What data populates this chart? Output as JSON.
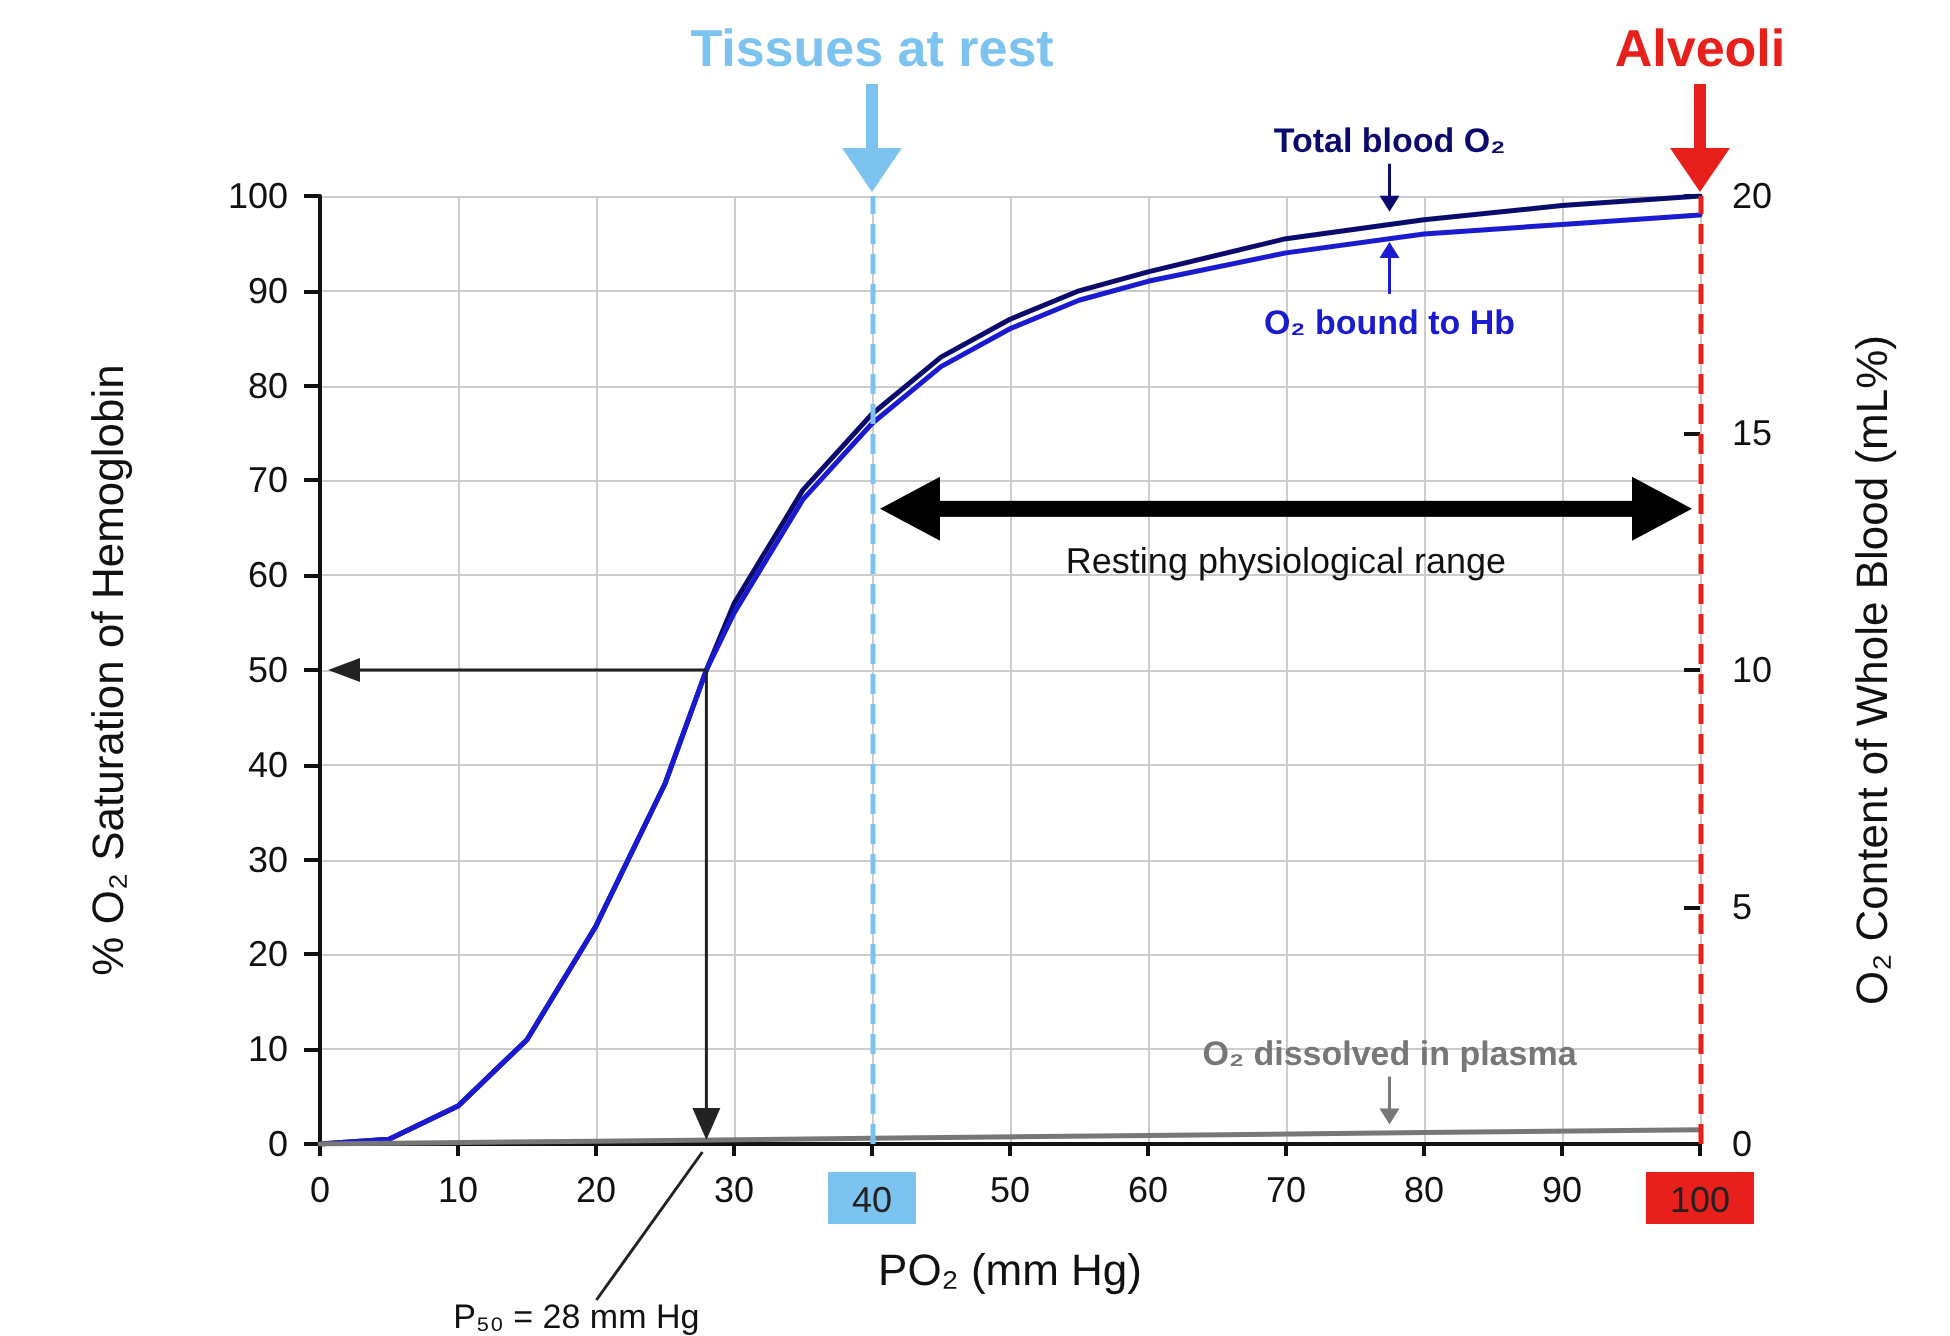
{
  "chart_data": {
    "type": "line",
    "xlabel": "PO₂ (mm Hg)",
    "ylabel": "% O₂ Saturation of Hemoglobin",
    "y2label": "O₂ Content of Whole Blood (mL%)",
    "x": [
      0,
      5,
      10,
      15,
      20,
      25,
      28,
      30,
      35,
      40,
      45,
      50,
      55,
      60,
      70,
      80,
      90,
      100
    ],
    "series": [
      {
        "name": "Total blood O₂",
        "color": "#0b0b6e",
        "values": [
          0,
          0.5,
          4,
          11,
          23,
          38,
          50,
          57,
          69,
          77,
          83,
          87,
          90,
          92,
          95.5,
          97.5,
          99,
          100
        ]
      },
      {
        "name": "O₂ bound to Hb",
        "color": "#1a1ad0",
        "values": [
          0,
          0.5,
          4,
          11,
          23,
          38,
          50,
          56,
          68,
          76,
          82,
          86,
          89,
          91,
          94,
          96,
          97,
          98
        ]
      },
      {
        "name": "O₂ dissolved in plasma",
        "color": "#777777",
        "x": [
          0,
          20,
          40,
          60,
          80,
          100
        ],
        "values": [
          0,
          0.3,
          0.6,
          0.9,
          1.2,
          1.5
        ]
      }
    ],
    "xlim": [
      0,
      100
    ],
    "xticks": [
      0,
      10,
      20,
      30,
      40,
      50,
      60,
      70,
      80,
      90,
      100
    ],
    "ylim": [
      0,
      100
    ],
    "yticks": [
      0,
      10,
      20,
      30,
      40,
      50,
      60,
      70,
      80,
      90,
      100
    ],
    "y2lim": [
      0,
      20
    ],
    "y2ticks": [
      0,
      5,
      10,
      15,
      20
    ],
    "ref_lines": [
      {
        "axis": "x",
        "value": 40,
        "label": "Tissues at rest",
        "color": "#7cc3ef",
        "line_style": "dashed"
      },
      {
        "axis": "x",
        "value": 100,
        "label": "Alveoli",
        "color": "#e8201c",
        "line_style": "dashed"
      }
    ],
    "annotations": [
      "Resting physiological range",
      {
        "text": "P₅₀ = 28 mm Hg",
        "x": 28,
        "y": 0
      }
    ],
    "grid": true,
    "marker": "none",
    "line_style": "solid"
  }
}
